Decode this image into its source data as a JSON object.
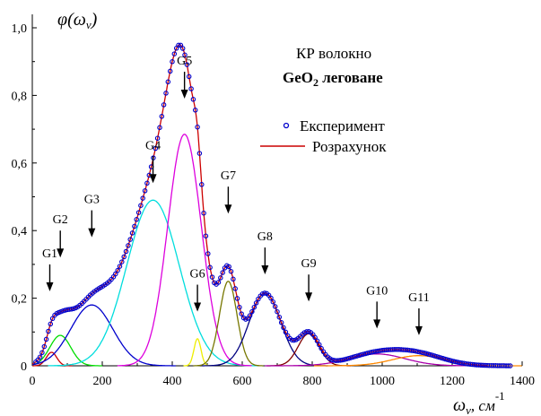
{
  "chart_data": {
    "type": "line",
    "ylabel": "φ(ω",
    "ylabel_sub": "v",
    "ylabel_close": ")",
    "xlabel": "ω",
    "xlabel_sub": "v",
    "xlabel_unit": ", см",
    "xlabel_exp": "-1",
    "title_line1": "КР волокно",
    "title_line2_main": "GeO",
    "title_line2_sub": "2",
    "title_line2_rest": " леговане",
    "xlim": [
      0,
      1400
    ],
    "ylim": [
      0,
      1.0
    ],
    "xticks": [
      0,
      200,
      400,
      600,
      800,
      1000,
      1200,
      1400
    ],
    "xtick_labels": [
      "0",
      "200",
      "400",
      "600",
      "800",
      "1000",
      "1200",
      "1400"
    ],
    "yticks": [
      0,
      0.2,
      0.4,
      0.6,
      0.8,
      1.0
    ],
    "ytick_labels": [
      "0",
      "0,2",
      "0,4",
      "0,6",
      "0,8",
      "1,0"
    ],
    "legend": [
      {
        "name": "Експеримент",
        "color": "#0000cc",
        "marker": "circle"
      },
      {
        "name": "Розрахунок",
        "color": "#cc0000",
        "marker": "line"
      }
    ],
    "components": [
      {
        "name": "G1",
        "center": 55,
        "height": 0.04,
        "width": 15,
        "color": "#cc0000",
        "arrow_x": 50,
        "arrow_y": 0.3
      },
      {
        "name": "G2",
        "center": 80,
        "height": 0.09,
        "width": 30,
        "color": "#00dd00",
        "arrow_x": 80,
        "arrow_y": 0.4
      },
      {
        "name": "G3",
        "center": 170,
        "height": 0.18,
        "width": 60,
        "color": "#0000cc",
        "arrow_x": 170,
        "arrow_y": 0.46
      },
      {
        "name": "G4",
        "center": 345,
        "height": 0.49,
        "width": 75,
        "color": "#00dddd",
        "arrow_x": 345,
        "arrow_y": 0.62
      },
      {
        "name": "G5",
        "center": 435,
        "height": 0.685,
        "width": 48,
        "color": "#dd00dd",
        "arrow_x": 435,
        "arrow_y": 0.87
      },
      {
        "name": "G6",
        "center": 472,
        "height": 0.08,
        "width": 10,
        "color": "#eeee00",
        "arrow_x": 472,
        "arrow_y": 0.24
      },
      {
        "name": "G7",
        "center": 560,
        "height": 0.25,
        "width": 25,
        "color": "#777700",
        "arrow_x": 560,
        "arrow_y": 0.53
      },
      {
        "name": "G8",
        "center": 665,
        "height": 0.215,
        "width": 45,
        "color": "#000080",
        "arrow_x": 665,
        "arrow_y": 0.35
      },
      {
        "name": "G9",
        "center": 790,
        "height": 0.095,
        "width": 30,
        "color": "#800000",
        "arrow_x": 790,
        "arrow_y": 0.27
      },
      {
        "name": "G10",
        "center": 985,
        "height": 0.035,
        "width": 80,
        "color": "#aa00aa",
        "arrow_x": 985,
        "arrow_y": 0.19
      },
      {
        "name": "G11",
        "center": 1105,
        "height": 0.03,
        "width": 75,
        "color": "#ff8800",
        "arrow_x": 1105,
        "arrow_y": 0.17
      }
    ],
    "experiment": {
      "x_start": 10,
      "x_end": 1370,
      "step": 6
    },
    "grid": false
  }
}
